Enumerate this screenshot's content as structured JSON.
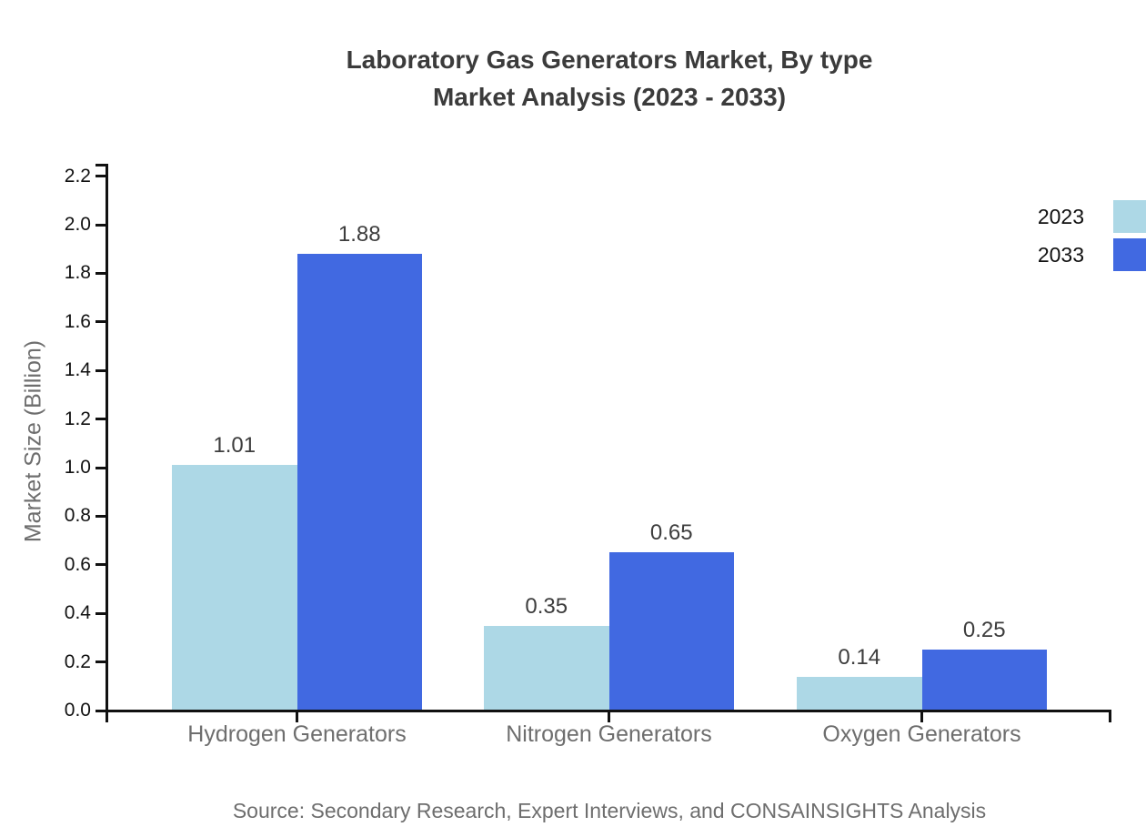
{
  "source_note": "Source: Secondary Research, Expert Interviews, and CONSAINSIGHTS Analysis",
  "chart_data": {
    "type": "bar",
    "title": "Laboratory Gas Generators Market, By type Market Analysis (2023 - 2033)",
    "title_line1": "Laboratory Gas Generators Market, By type",
    "title_line2": "Market Analysis (2023 - 2033)",
    "categories": [
      "Hydrogen Generators",
      "Nitrogen Generators",
      "Oxygen Generators"
    ],
    "series": [
      {
        "name": "2023",
        "color": "#ADD8E6",
        "values": [
          1.01,
          0.35,
          0.14
        ]
      },
      {
        "name": "2033",
        "color": "#4169E1",
        "values": [
          1.88,
          0.65,
          0.25
        ]
      }
    ],
    "xlabel": "",
    "ylabel": "Market Size (Billion)",
    "ylim": [
      0,
      2.2
    ],
    "ytick_step": 0.2,
    "value_labels": true,
    "grid": false,
    "legend_position": "right-top",
    "axis_color": "#111111"
  }
}
